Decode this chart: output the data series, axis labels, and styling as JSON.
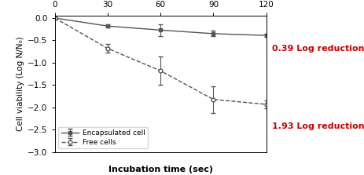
{
  "x": [
    0,
    30,
    60,
    90,
    120
  ],
  "encapsulated_y": [
    0,
    -0.18,
    -0.27,
    -0.35,
    -0.39
  ],
  "encapsulated_err": [
    0,
    0.04,
    0.13,
    0.06,
    0.03
  ],
  "free_y": [
    0,
    -0.68,
    -1.18,
    -1.82,
    -1.93
  ],
  "free_err": [
    0,
    0.1,
    0.32,
    0.3,
    0.08
  ],
  "xlabel": "Incubation time (sec)",
  "ylabel": "Cell viability (Log N/N₀)",
  "xlim": [
    0,
    120
  ],
  "ylim": [
    -3,
    0.05
  ],
  "yticks": [
    0,
    -0.5,
    -1,
    -1.5,
    -2,
    -2.5,
    -3
  ],
  "xticks": [
    0,
    30,
    60,
    90,
    120
  ],
  "label_encapsulated": "Encapsulated cell",
  "label_free": "Free cells",
  "annotation_encapsulated": "0.39 Log reduction",
  "annotation_free": "1.93 Log reduction",
  "annotation_color": "#cc0000",
  "line_color": "#555555",
  "bg_color": "#ffffff"
}
